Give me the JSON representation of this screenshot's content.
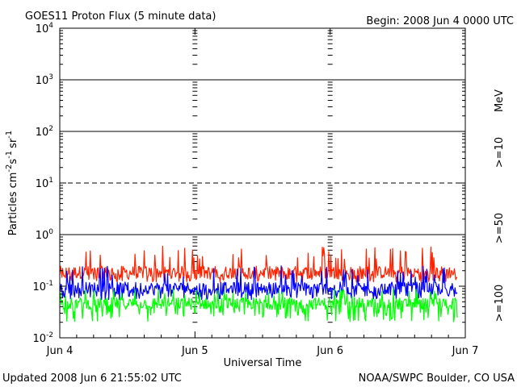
{
  "chart_data": {
    "type": "line",
    "title": "GOES11 Proton Flux (5 minute data)",
    "begin_label": "Begin: 2008 Jun 4 0000 UTC",
    "xlabel": "Universal Time",
    "ylabel_main": "Particles cm",
    "ylabel_sup1": "-2",
    "ylabel_mid1": "s",
    "ylabel_sup2": "-1",
    "ylabel_mid2": "sr",
    "ylabel_sup3": "-1",
    "x_ticks": [
      "Jun 4",
      "Jun 5",
      "Jun 6",
      "Jun 7"
    ],
    "y_scale": "log",
    "ylim": [
      0.01,
      10000
    ],
    "y_tick_base": [
      "10",
      "10",
      "10",
      "10",
      "10",
      "10",
      "10"
    ],
    "y_tick_exp": [
      "-2",
      "-1",
      "0",
      "1",
      "2",
      "3",
      "4"
    ],
    "reference_lines": [
      1,
      10,
      100,
      1000
    ],
    "unit_label": "MeV",
    "series": [
      {
        "name": ">=10",
        "color": "#ff2200",
        "typical": 0.18,
        "low": 0.12,
        "high": 0.6
      },
      {
        "name": ">=50",
        "color": "#0000ff",
        "typical": 0.09,
        "low": 0.055,
        "high": 0.25
      },
      {
        "name": ">=100",
        "color": "#00ff00",
        "typical": 0.045,
        "low": 0.02,
        "high": 0.09
      }
    ]
  },
  "footer": {
    "updated": "Updated 2008 Jun  6 21:55:02 UTC",
    "source": "NOAA/SWPC Boulder, CO USA"
  }
}
